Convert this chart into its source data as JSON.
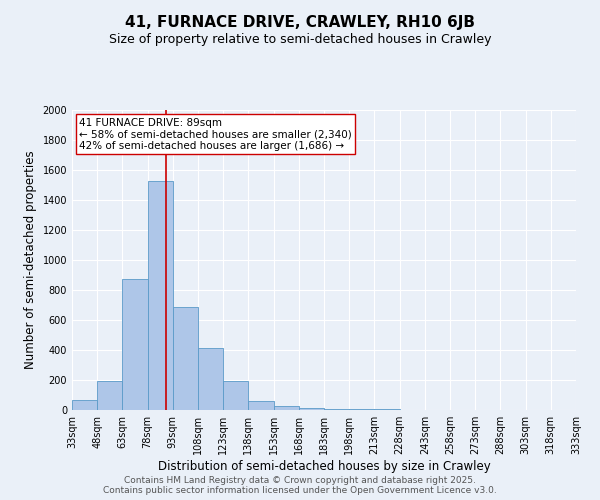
{
  "title_line1": "41, FURNACE DRIVE, CRAWLEY, RH10 6JB",
  "title_line2": "Size of property relative to semi-detached houses in Crawley",
  "xlabel": "Distribution of semi-detached houses by size in Crawley",
  "ylabel": "Number of semi-detached properties",
  "bin_labels": [
    "33sqm",
    "48sqm",
    "63sqm",
    "78sqm",
    "93sqm",
    "108sqm",
    "123sqm",
    "138sqm",
    "153sqm",
    "168sqm",
    "183sqm",
    "198sqm",
    "213sqm",
    "228sqm",
    "243sqm",
    "258sqm",
    "273sqm",
    "288sqm",
    "303sqm",
    "318sqm",
    "333sqm"
  ],
  "bin_edges": [
    33,
    48,
    63,
    78,
    93,
    108,
    123,
    138,
    153,
    168,
    183,
    198,
    213,
    228,
    243,
    258,
    273,
    288,
    303,
    318,
    333
  ],
  "bar_heights": [
    65,
    195,
    875,
    1530,
    690,
    415,
    195,
    60,
    25,
    15,
    10,
    5,
    5,
    0,
    0,
    0,
    0,
    0,
    0,
    0
  ],
  "bar_color": "#aec6e8",
  "bar_edge_color": "#5a9ac8",
  "property_size": 89,
  "property_line_color": "#cc0000",
  "annotation_text": "41 FURNACE DRIVE: 89sqm\n← 58% of semi-detached houses are smaller (2,340)\n42% of semi-detached houses are larger (1,686) →",
  "annotation_box_color": "#ffffff",
  "annotation_box_edge": "#cc0000",
  "ylim": [
    0,
    2000
  ],
  "yticks": [
    0,
    200,
    400,
    600,
    800,
    1000,
    1200,
    1400,
    1600,
    1800,
    2000
  ],
  "background_color": "#eaf0f8",
  "grid_color": "#ffffff",
  "footer_line1": "Contains HM Land Registry data © Crown copyright and database right 2025.",
  "footer_line2": "Contains public sector information licensed under the Open Government Licence v3.0.",
  "title_fontsize": 11,
  "subtitle_fontsize": 9,
  "axis_label_fontsize": 8.5,
  "tick_fontsize": 7,
  "annotation_fontsize": 7.5,
  "footer_fontsize": 6.5
}
